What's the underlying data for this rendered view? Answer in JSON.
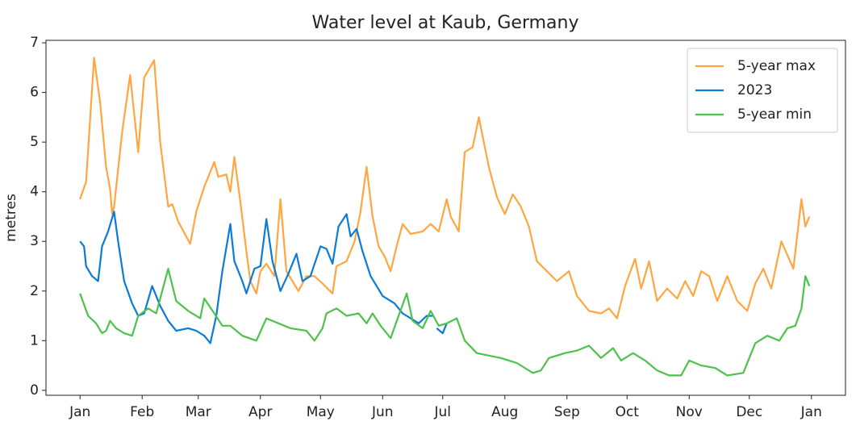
{
  "chart_data": {
    "type": "line",
    "title": "Water level at Kaub, Germany",
    "y_label": "metres",
    "xlim": [
      -17,
      382
    ],
    "ylim": [
      -0.1,
      7.05
    ],
    "xticks": [
      {
        "value": 0,
        "label": "Jan"
      },
      {
        "value": 31,
        "label": "Feb"
      },
      {
        "value": 59,
        "label": "Mar"
      },
      {
        "value": 90,
        "label": "Apr"
      },
      {
        "value": 120,
        "label": "May"
      },
      {
        "value": 151,
        "label": "Jun"
      },
      {
        "value": 181,
        "label": "Jul"
      },
      {
        "value": 212,
        "label": "Aug"
      },
      {
        "value": 243,
        "label": "Sep"
      },
      {
        "value": 273,
        "label": "Oct"
      },
      {
        "value": 304,
        "label": "Nov"
      },
      {
        "value": 334,
        "label": "Dec"
      },
      {
        "value": 365,
        "label": "Jan"
      }
    ],
    "yticks": [
      0,
      1,
      2,
      3,
      4,
      5,
      6,
      7
    ],
    "legend": "upper right",
    "series": [
      {
        "name": "5-year max",
        "color": "#ffa640",
        "x": [
          0,
          3,
          7,
          10,
          13,
          15,
          16,
          17,
          21,
          25,
          29,
          32,
          37,
          40,
          44,
          46,
          49,
          55,
          58,
          62,
          67,
          69,
          73,
          75,
          77,
          80,
          83,
          85,
          88,
          90,
          93,
          97,
          100,
          103,
          106,
          109,
          113,
          117,
          121,
          126,
          128,
          133,
          137,
          140,
          143,
          146,
          149,
          152,
          155,
          158,
          161,
          165,
          171,
          175,
          179,
          183,
          185,
          189,
          192,
          196,
          199,
          204,
          208,
          212,
          216,
          220,
          224,
          228,
          233,
          238,
          244,
          248,
          254,
          260,
          264,
          268,
          272,
          277,
          280,
          284,
          288,
          293,
          298,
          302,
          306,
          310,
          314,
          318,
          323,
          328,
          333,
          337,
          341,
          345,
          350,
          356,
          360,
          362,
          364
        ],
        "values": [
          3.85,
          4.2,
          6.7,
          5.8,
          4.5,
          4.05,
          3.55,
          3.7,
          5.2,
          6.35,
          4.8,
          6.3,
          6.65,
          5.0,
          3.7,
          3.75,
          3.4,
          2.95,
          3.6,
          4.1,
          4.6,
          4.3,
          4.35,
          4.0,
          4.7,
          3.8,
          2.8,
          2.2,
          1.95,
          2.4,
          2.55,
          2.3,
          3.85,
          2.4,
          2.2,
          2.0,
          2.3,
          2.3,
          2.15,
          1.95,
          2.5,
          2.6,
          3.0,
          3.6,
          4.5,
          3.5,
          2.9,
          2.7,
          2.4,
          2.9,
          3.35,
          3.15,
          3.2,
          3.35,
          3.2,
          3.85,
          3.5,
          3.2,
          4.8,
          4.9,
          5.5,
          4.5,
          3.9,
          3.55,
          3.95,
          3.7,
          3.3,
          2.6,
          2.4,
          2.2,
          2.4,
          1.9,
          1.6,
          1.55,
          1.65,
          1.45,
          2.1,
          2.65,
          2.05,
          2.6,
          1.8,
          2.05,
          1.85,
          2.2,
          1.9,
          2.4,
          2.3,
          1.8,
          2.3,
          1.8,
          1.6,
          2.15,
          2.45,
          2.05,
          3.0,
          2.45,
          3.85,
          3.3,
          3.5
        ]
      },
      {
        "name": "2023",
        "color": "#0a7bd8",
        "x": [
          0,
          2,
          3,
          6,
          9,
          11,
          14,
          17,
          19,
          22,
          26,
          29,
          32,
          36,
          40,
          44,
          48,
          54,
          58,
          62,
          65,
          68,
          71,
          75,
          77,
          81,
          83,
          87,
          90,
          93,
          96,
          100,
          104,
          108,
          111,
          115,
          120,
          123,
          126,
          129,
          133,
          135,
          138,
          141,
          145,
          151,
          157,
          161,
          165,
          169,
          173,
          176,
          177,
          178,
          181,
          183
        ],
        "values": [
          3.0,
          2.9,
          2.5,
          2.3,
          2.2,
          2.9,
          3.2,
          3.6,
          3.0,
          2.2,
          1.75,
          1.5,
          1.55,
          2.1,
          1.7,
          1.4,
          1.2,
          1.25,
          1.2,
          1.1,
          0.95,
          1.5,
          2.4,
          3.35,
          2.6,
          2.2,
          1.95,
          2.45,
          2.5,
          3.45,
          2.6,
          2.0,
          2.35,
          2.75,
          2.2,
          2.3,
          2.9,
          2.85,
          2.55,
          3.3,
          3.55,
          3.1,
          3.25,
          2.8,
          2.3,
          1.9,
          1.75,
          1.55,
          1.45,
          1.35,
          1.5,
          1.5,
          null,
          1.25,
          1.15,
          1.35
        ]
      },
      {
        "name": "5-year min",
        "color": "#4cc24c",
        "x": [
          0,
          4,
          8,
          11,
          13,
          15,
          18,
          22,
          26,
          29,
          34,
          38,
          44,
          48,
          54,
          60,
          62,
          67,
          71,
          75,
          81,
          88,
          93,
          99,
          105,
          113,
          117,
          121,
          123,
          128,
          133,
          139,
          143,
          146,
          150,
          155,
          159,
          163,
          166,
          171,
          175,
          179,
          183,
          188,
          192,
          198,
          204,
          210,
          218,
          226,
          230,
          234,
          242,
          248,
          254,
          260,
          266,
          270,
          276,
          282,
          288,
          294,
          300,
          304,
          310,
          317,
          323,
          331,
          337,
          343,
          349,
          353,
          357,
          360,
          362,
          364
        ],
        "values": [
          1.95,
          1.5,
          1.35,
          1.15,
          1.2,
          1.4,
          1.25,
          1.15,
          1.1,
          1.5,
          1.65,
          1.55,
          2.45,
          1.8,
          1.6,
          1.45,
          1.85,
          1.55,
          1.3,
          1.3,
          1.1,
          1.0,
          1.45,
          1.35,
          1.25,
          1.2,
          1.0,
          1.25,
          1.55,
          1.65,
          1.5,
          1.55,
          1.35,
          1.55,
          1.3,
          1.05,
          1.5,
          1.95,
          1.4,
          1.25,
          1.6,
          1.3,
          1.35,
          1.45,
          1.0,
          0.75,
          0.7,
          0.65,
          0.55,
          0.35,
          0.4,
          0.65,
          0.75,
          0.8,
          0.9,
          0.65,
          0.85,
          0.6,
          0.75,
          0.6,
          0.4,
          0.3,
          0.3,
          0.6,
          0.5,
          0.45,
          0.3,
          0.35,
          0.95,
          1.1,
          1.0,
          1.25,
          1.3,
          1.65,
          2.3,
          2.1
        ]
      }
    ]
  }
}
